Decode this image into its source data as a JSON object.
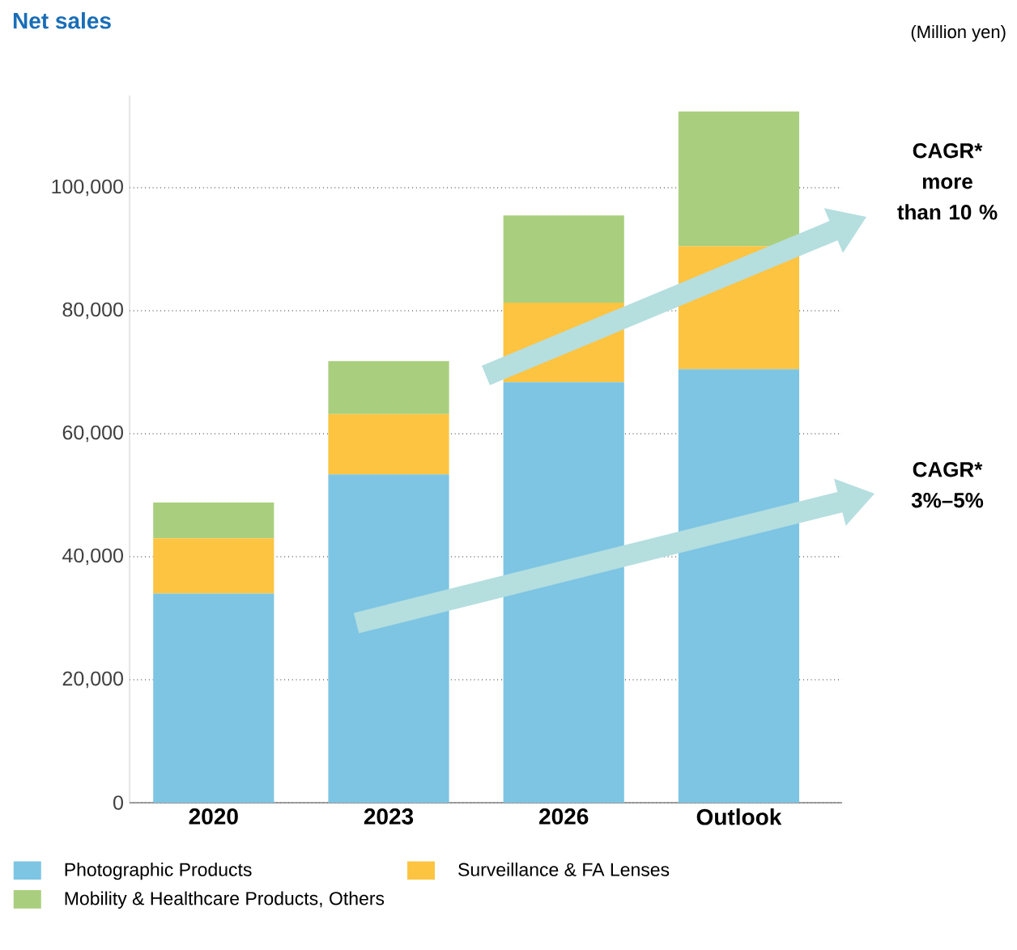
{
  "chart_data": {
    "type": "bar",
    "title": "Net sales",
    "stacked": true,
    "categories": [
      "2020",
      "2023",
      "2026",
      "Outlook"
    ],
    "series": [
      {
        "name": "Photographic Products",
        "color": "#7dc5e3",
        "values": [
          34000,
          53400,
          68400,
          70500
        ]
      },
      {
        "name": "Surveillance & FA Lenses",
        "color": "#fdc441",
        "values": [
          9000,
          9800,
          12900,
          20000
        ]
      },
      {
        "name": "Mobility & Healthcare Products, Others",
        "color": "#a9cf7e",
        "values": [
          5800,
          8600,
          14200,
          21900
        ]
      }
    ],
    "ylim": [
      0,
      115000
    ],
    "yticks": [
      {
        "value": 0,
        "label": "0"
      },
      {
        "value": 20000,
        "label": "20,000"
      },
      {
        "value": 40000,
        "label": "40,000"
      },
      {
        "value": 60000,
        "label": "60,000"
      },
      {
        "value": 80000,
        "label": "80,000"
      },
      {
        "value": 100000,
        "label": "100,000"
      }
    ],
    "grid": "y",
    "legend": "bottom",
    "annotations": [
      "(Million yen)",
      "CAGR* more than 10 %",
      "CAGR* 3%–5%"
    ]
  }
}
